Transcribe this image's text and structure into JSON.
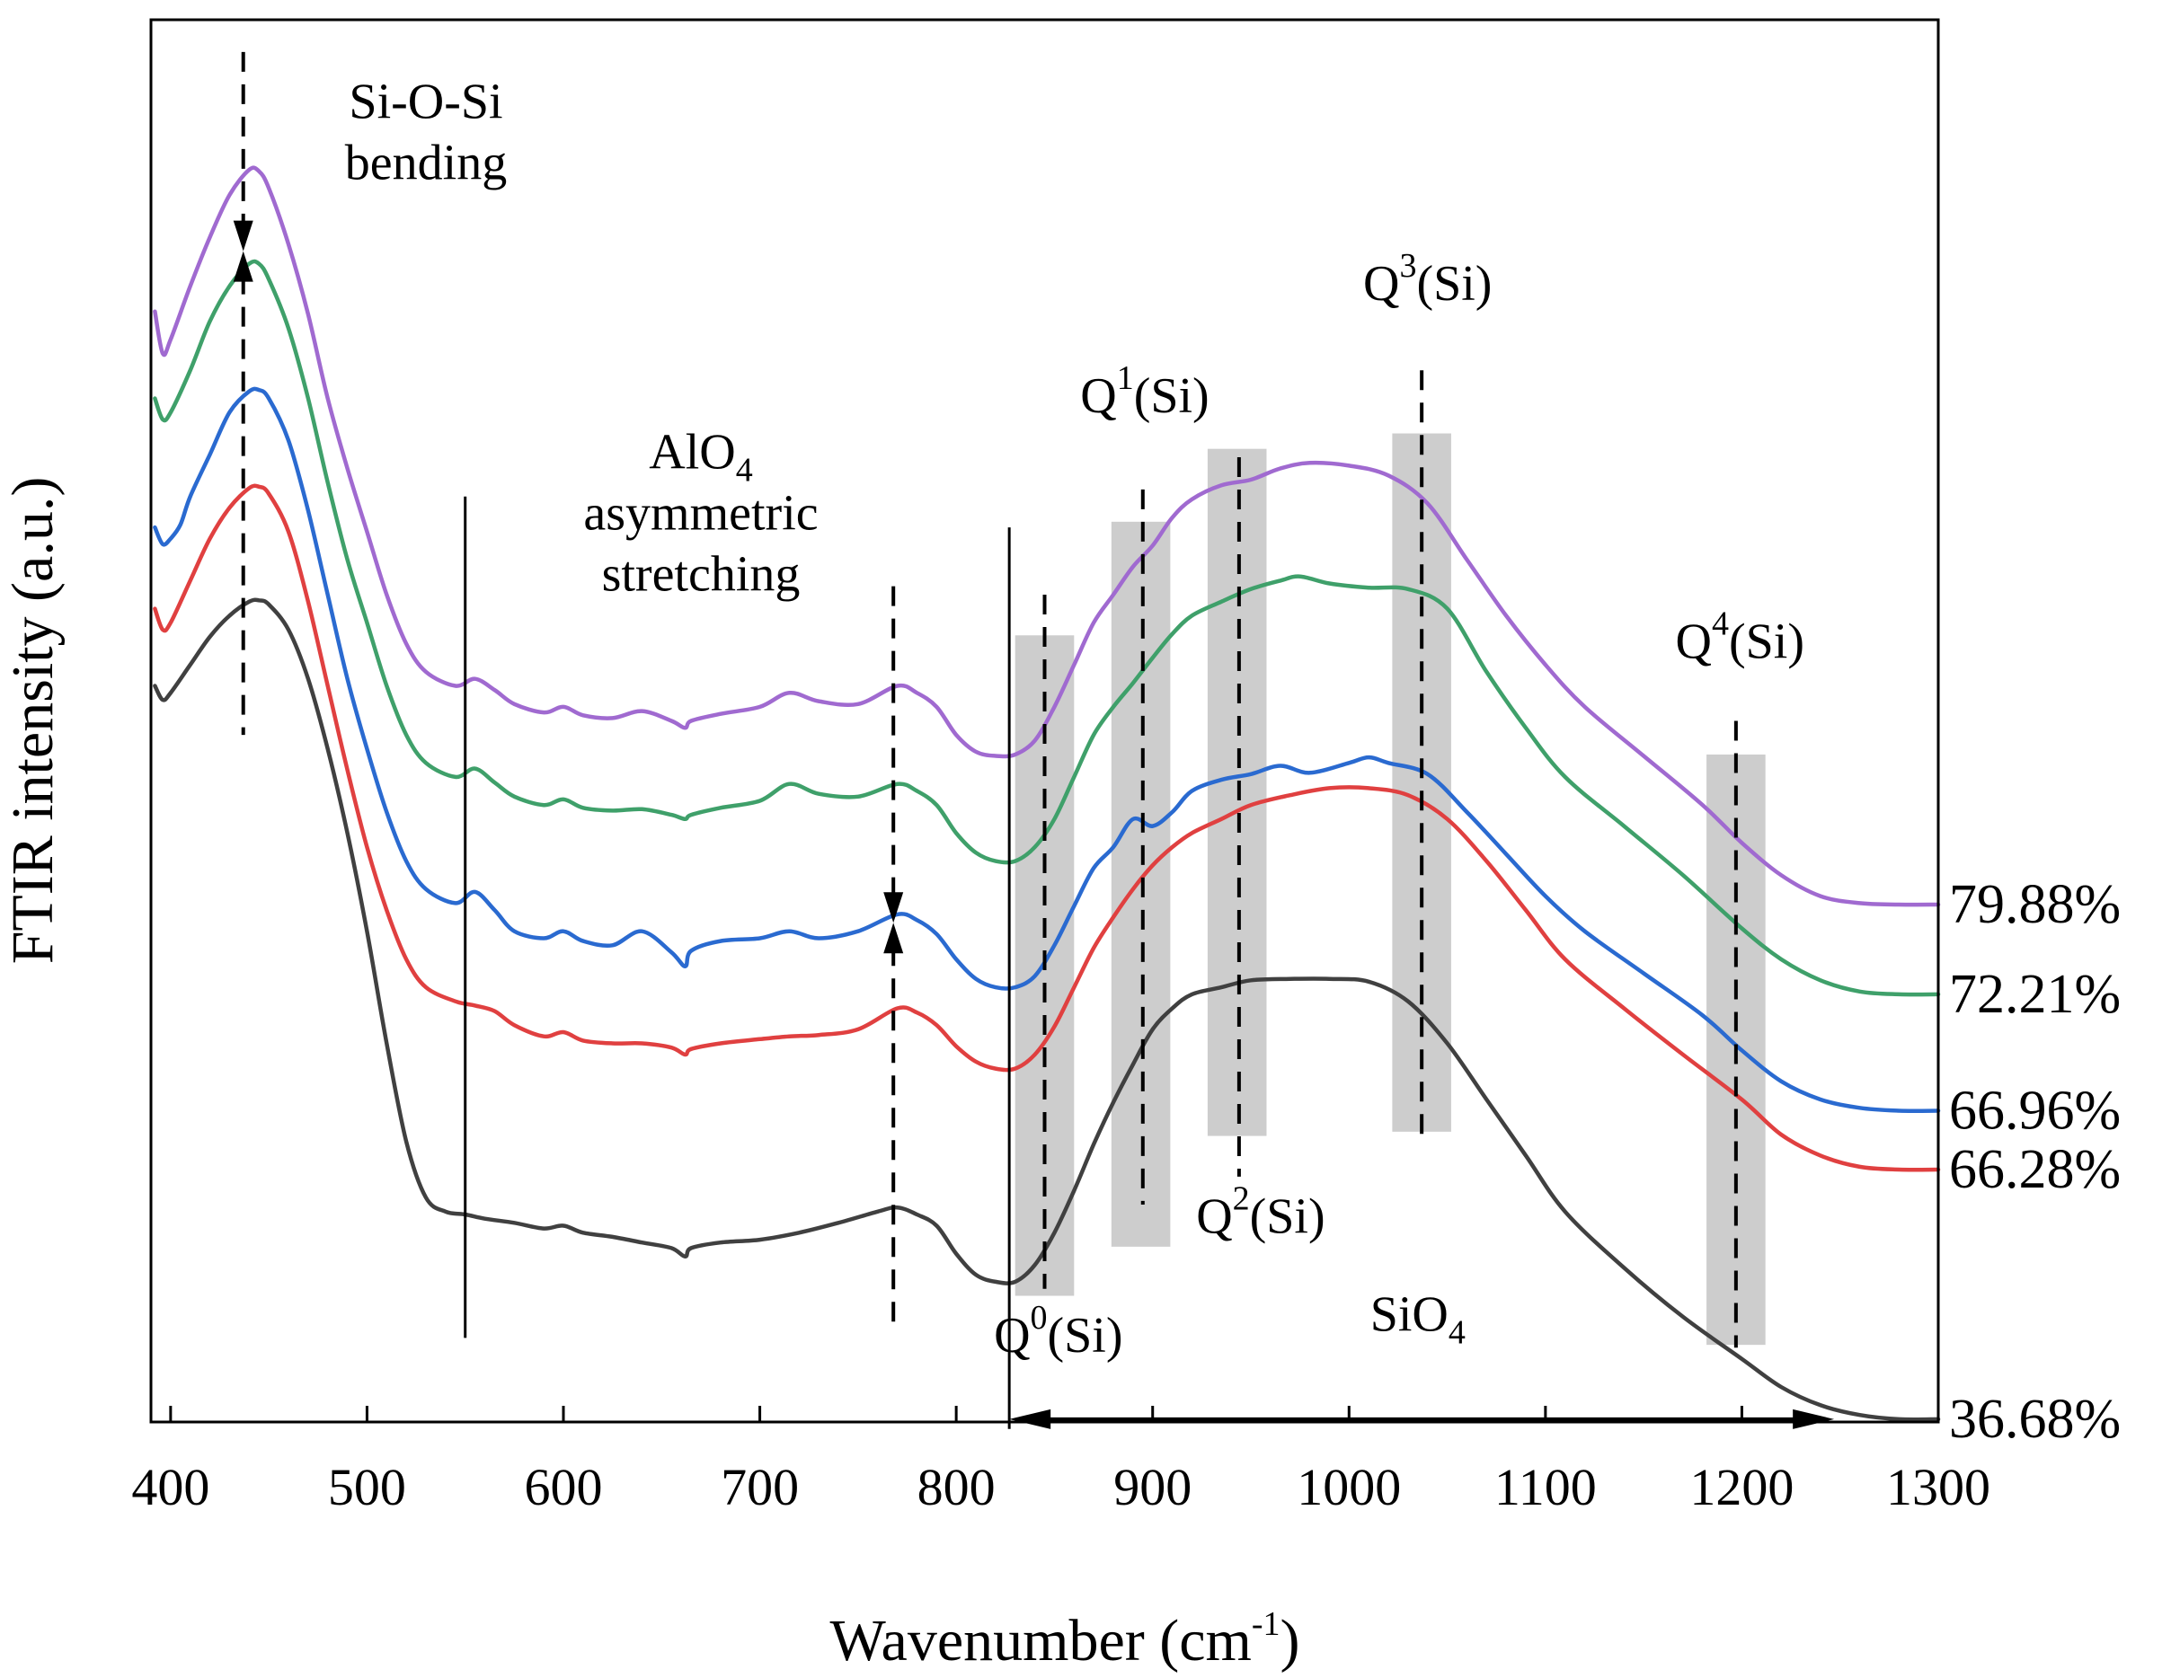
{
  "chart_data": {
    "type": "line",
    "title": "",
    "xlabel": "Wavenumber (cm",
    "xlabel_sup": "-1",
    "xlabel_close": ")",
    "ylabel": "FTIR intensity (a.u.)",
    "xlim": [
      390,
      1300
    ],
    "ylim": [
      0,
      1
    ],
    "x_ticks": [
      400,
      500,
      600,
      700,
      800,
      900,
      1000,
      1100,
      1200,
      1300
    ],
    "x_tick_labels": [
      "400",
      "500",
      "600",
      "700",
      "800",
      "900",
      "1000",
      "1100",
      "1200",
      "1300"
    ],
    "grid": false,
    "series": [
      {
        "name": "79.88%",
        "color": "#a06ad0",
        "x": [
          392,
          396,
          400,
          410,
          420,
          430,
          440,
          445,
          450,
          460,
          470,
          480,
          490,
          500,
          510,
          520,
          530,
          545,
          555,
          565,
          575,
          590,
          600,
          610,
          625,
          640,
          655,
          662,
          665,
          680,
          700,
          715,
          730,
          750,
          770,
          780,
          790,
          800,
          810,
          820,
          830,
          840,
          850,
          860,
          870,
          880,
          890,
          900,
          910,
          920,
          935,
          950,
          965,
          980,
          1000,
          1020,
          1040,
          1060,
          1080,
          1100,
          1120,
          1150,
          1180,
          1200,
          1220,
          1240,
          1260,
          1280,
          1300
        ],
        "y": [
          0.792,
          0.762,
          0.772,
          0.81,
          0.845,
          0.875,
          0.893,
          0.892,
          0.88,
          0.84,
          0.79,
          0.73,
          0.68,
          0.635,
          0.59,
          0.555,
          0.535,
          0.525,
          0.53,
          0.522,
          0.512,
          0.506,
          0.51,
          0.504,
          0.502,
          0.507,
          0.5,
          0.495,
          0.5,
          0.505,
          0.51,
          0.52,
          0.514,
          0.512,
          0.525,
          0.52,
          0.51,
          0.49,
          0.478,
          0.475,
          0.476,
          0.486,
          0.51,
          0.54,
          0.57,
          0.59,
          0.61,
          0.625,
          0.645,
          0.658,
          0.668,
          0.672,
          0.68,
          0.684,
          0.682,
          0.675,
          0.655,
          0.615,
          0.575,
          0.54,
          0.51,
          0.475,
          0.44,
          0.413,
          0.39,
          0.375,
          0.37,
          0.369,
          0.369
        ]
      },
      {
        "name": "72.21%",
        "color": "#3fa06a",
        "x": [
          392,
          396,
          400,
          410,
          420,
          430,
          440,
          445,
          450,
          460,
          470,
          480,
          490,
          500,
          510,
          520,
          530,
          545,
          555,
          565,
          575,
          590,
          600,
          610,
          625,
          640,
          655,
          662,
          665,
          680,
          700,
          715,
          730,
          750,
          770,
          780,
          790,
          800,
          810,
          820,
          830,
          840,
          850,
          860,
          870,
          880,
          890,
          900,
          910,
          920,
          935,
          950,
          965,
          975,
          990,
          1010,
          1030,
          1050,
          1070,
          1090,
          1110,
          1140,
          1170,
          1200,
          1220,
          1240,
          1260,
          1280,
          1300
        ],
        "y": [
          0.73,
          0.715,
          0.72,
          0.75,
          0.785,
          0.81,
          0.826,
          0.826,
          0.815,
          0.78,
          0.73,
          0.67,
          0.615,
          0.57,
          0.525,
          0.49,
          0.47,
          0.46,
          0.466,
          0.456,
          0.446,
          0.44,
          0.444,
          0.438,
          0.436,
          0.437,
          0.433,
          0.43,
          0.433,
          0.438,
          0.443,
          0.455,
          0.448,
          0.446,
          0.455,
          0.45,
          0.44,
          0.42,
          0.406,
          0.4,
          0.4,
          0.41,
          0.43,
          0.46,
          0.49,
          0.51,
          0.527,
          0.545,
          0.562,
          0.575,
          0.585,
          0.594,
          0.6,
          0.603,
          0.598,
          0.595,
          0.594,
          0.58,
          0.535,
          0.495,
          0.46,
          0.425,
          0.39,
          0.352,
          0.33,
          0.315,
          0.307,
          0.305,
          0.305
        ]
      },
      {
        "name": "66.96%",
        "color": "#2a6ad0",
        "x": [
          392,
          396,
          400,
          405,
          410,
          420,
          430,
          440,
          445,
          450,
          460,
          470,
          480,
          490,
          500,
          510,
          520,
          530,
          545,
          555,
          565,
          575,
          590,
          600,
          610,
          625,
          640,
          655,
          662,
          665,
          680,
          700,
          715,
          730,
          750,
          770,
          780,
          790,
          800,
          810,
          820,
          830,
          840,
          850,
          860,
          870,
          880,
          890,
          900,
          910,
          920,
          935,
          950,
          965,
          980,
          1000,
          1010,
          1020,
          1040,
          1060,
          1080,
          1100,
          1120,
          1150,
          1180,
          1200,
          1220,
          1240,
          1260,
          1280,
          1300
        ],
        "y": [
          0.638,
          0.626,
          0.63,
          0.64,
          0.66,
          0.69,
          0.72,
          0.735,
          0.736,
          0.73,
          0.7,
          0.65,
          0.59,
          0.53,
          0.48,
          0.435,
          0.4,
          0.38,
          0.37,
          0.378,
          0.365,
          0.35,
          0.345,
          0.35,
          0.343,
          0.34,
          0.35,
          0.335,
          0.325,
          0.336,
          0.343,
          0.345,
          0.35,
          0.345,
          0.35,
          0.362,
          0.358,
          0.348,
          0.33,
          0.316,
          0.31,
          0.31,
          0.318,
          0.34,
          0.368,
          0.395,
          0.41,
          0.43,
          0.425,
          0.435,
          0.45,
          0.458,
          0.462,
          0.468,
          0.463,
          0.47,
          0.474,
          0.47,
          0.462,
          0.435,
          0.405,
          0.375,
          0.35,
          0.32,
          0.29,
          0.265,
          0.243,
          0.23,
          0.224,
          0.222,
          0.222
        ]
      },
      {
        "name": "66.28%",
        "color": "#e04040",
        "x": [
          392,
          396,
          400,
          410,
          420,
          430,
          440,
          445,
          450,
          460,
          470,
          480,
          490,
          500,
          510,
          520,
          530,
          545,
          555,
          565,
          575,
          590,
          600,
          610,
          625,
          640,
          655,
          662,
          665,
          680,
          700,
          715,
          730,
          750,
          770,
          780,
          790,
          800,
          810,
          820,
          830,
          840,
          850,
          860,
          870,
          880,
          890,
          900,
          910,
          920,
          935,
          950,
          970,
          990,
          1010,
          1030,
          1050,
          1070,
          1090,
          1110,
          1140,
          1170,
          1200,
          1220,
          1240,
          1260,
          1280,
          1300
        ],
        "y": [
          0.58,
          0.565,
          0.57,
          0.6,
          0.63,
          0.652,
          0.666,
          0.667,
          0.662,
          0.635,
          0.585,
          0.525,
          0.465,
          0.41,
          0.365,
          0.33,
          0.31,
          0.3,
          0.297,
          0.293,
          0.283,
          0.275,
          0.278,
          0.272,
          0.27,
          0.27,
          0.267,
          0.262,
          0.266,
          0.27,
          0.273,
          0.275,
          0.276,
          0.28,
          0.295,
          0.292,
          0.283,
          0.268,
          0.257,
          0.252,
          0.252,
          0.262,
          0.282,
          0.31,
          0.338,
          0.36,
          0.38,
          0.397,
          0.41,
          0.42,
          0.43,
          0.44,
          0.447,
          0.452,
          0.452,
          0.447,
          0.43,
          0.4,
          0.365,
          0.33,
          0.295,
          0.262,
          0.23,
          0.205,
          0.19,
          0.182,
          0.18,
          0.18
        ]
      },
      {
        "name": "36.68%",
        "color": "#404040",
        "x": [
          392,
          396,
          400,
          410,
          420,
          430,
          440,
          445,
          450,
          460,
          470,
          480,
          490,
          500,
          510,
          520,
          530,
          540,
          550,
          560,
          575,
          590,
          600,
          610,
          625,
          640,
          655,
          662,
          665,
          680,
          700,
          720,
          740,
          760,
          770,
          780,
          790,
          800,
          810,
          820,
          830,
          840,
          850,
          860,
          870,
          880,
          890,
          900,
          910,
          920,
          935,
          950,
          970,
          990,
          1010,
          1030,
          1050,
          1070,
          1090,
          1110,
          1140,
          1170,
          1200,
          1220,
          1240,
          1260,
          1280,
          1300
        ],
        "y": [
          0.525,
          0.515,
          0.52,
          0.54,
          0.56,
          0.575,
          0.585,
          0.586,
          0.583,
          0.565,
          0.53,
          0.48,
          0.42,
          0.35,
          0.27,
          0.2,
          0.16,
          0.15,
          0.148,
          0.145,
          0.142,
          0.138,
          0.14,
          0.135,
          0.132,
          0.128,
          0.124,
          0.118,
          0.124,
          0.128,
          0.13,
          0.135,
          0.142,
          0.15,
          0.153,
          0.148,
          0.14,
          0.12,
          0.105,
          0.1,
          0.1,
          0.112,
          0.135,
          0.165,
          0.198,
          0.228,
          0.255,
          0.28,
          0.295,
          0.305,
          0.31,
          0.315,
          0.316,
          0.316,
          0.314,
          0.3,
          0.27,
          0.23,
          0.19,
          0.15,
          0.11,
          0.075,
          0.045,
          0.025,
          0.012,
          0.005,
          0.002,
          0.002
        ]
      }
    ],
    "vertical_lines": [
      {
        "name": "boundary-550",
        "x": 550,
        "y_range": [
          0.06,
          0.66
        ],
        "style": "solid"
      },
      {
        "name": "boundary-827",
        "x": 827,
        "y_range": [
          -0.005,
          0.638
        ],
        "style": "solid"
      },
      {
        "name": "sioobend-peak-down",
        "x": 437,
        "y_range": [
          0.835,
          0.977
        ],
        "style": "dashed",
        "arrow": "down"
      },
      {
        "name": "sioobend-peak-up",
        "x": 437,
        "y_range": [
          0.49,
          0.835
        ],
        "style": "dashed",
        "arrow": "up"
      },
      {
        "name": "alo4-peak-down",
        "x": 768,
        "y_range": [
          0.356,
          0.596
        ],
        "style": "dashed",
        "arrow": "down"
      },
      {
        "name": "alo4-peak-up",
        "x": 768,
        "y_range": [
          0.068,
          0.356
        ],
        "style": "dashed",
        "arrow": "up"
      },
      {
        "name": "q0-line",
        "x": 845,
        "y_range": [
          0.095,
          0.59
        ],
        "style": "dashed"
      },
      {
        "name": "q1-line",
        "x": 895,
        "y_range": [
          0.155,
          0.665
        ],
        "style": "dashed"
      },
      {
        "name": "q2-line",
        "x": 944,
        "y_range": [
          0.175,
          0.688
        ],
        "style": "dashed"
      },
      {
        "name": "q3-line",
        "x": 1037,
        "y_range": [
          0.203,
          0.75
        ],
        "style": "dashed"
      },
      {
        "name": "q4-line",
        "x": 1197,
        "y_range": [
          0.053,
          0.5
        ],
        "style": "dashed"
      }
    ],
    "shaded_bands": [
      {
        "name": "q0-band",
        "x_range": [
          830,
          860
        ],
        "y_range": [
          0.09,
          0.561
        ]
      },
      {
        "name": "q1-band",
        "x_range": [
          879,
          909
        ],
        "y_range": [
          0.125,
          0.642
        ]
      },
      {
        "name": "q2-band",
        "x_range": [
          928,
          958
        ],
        "y_range": [
          0.204,
          0.694
        ]
      },
      {
        "name": "q3-band",
        "x_range": [
          1022,
          1052
        ],
        "y_range": [
          0.207,
          0.705
        ]
      },
      {
        "name": "q4-band",
        "x_range": [
          1182,
          1212
        ],
        "y_range": [
          0.055,
          0.476
        ]
      }
    ],
    "range_arrow": {
      "name": "sio4-range",
      "x_range": [
        827,
        1247
      ],
      "y": 0.002
    },
    "annotations": [
      {
        "name": "si-o-si-label",
        "lines": [
          "Si-O-Si",
          "bending"
        ],
        "x": 530,
        "y": 0.93
      },
      {
        "name": "alo4-label",
        "lines": [
          "AlO4",
          "asymmetric",
          "stretching"
        ],
        "x": 670,
        "y": 0.68
      },
      {
        "name": "q0-label",
        "base": "Q",
        "sup": "0",
        "rest": "(Si)",
        "x": 852,
        "y": 0.05
      },
      {
        "name": "q1-label",
        "base": "Q",
        "sup": "1",
        "rest": "(Si)",
        "x": 896,
        "y": 0.72
      },
      {
        "name": "q2-label",
        "base": "Q",
        "sup": "2",
        "rest": "(Si)",
        "x": 955,
        "y": 0.135
      },
      {
        "name": "q3-label",
        "base": "Q",
        "sup": "3",
        "rest": "(Si)",
        "x": 1040,
        "y": 0.8
      },
      {
        "name": "q4-label",
        "base": "Q",
        "sup": "4",
        "rest": "(Si)",
        "x": 1199,
        "y": 0.545
      },
      {
        "name": "sio4-label",
        "lines": [
          "SiO4"
        ],
        "x": 1035,
        "y": 0.065
      }
    ],
    "legend_placement": "right, at each curve end"
  }
}
